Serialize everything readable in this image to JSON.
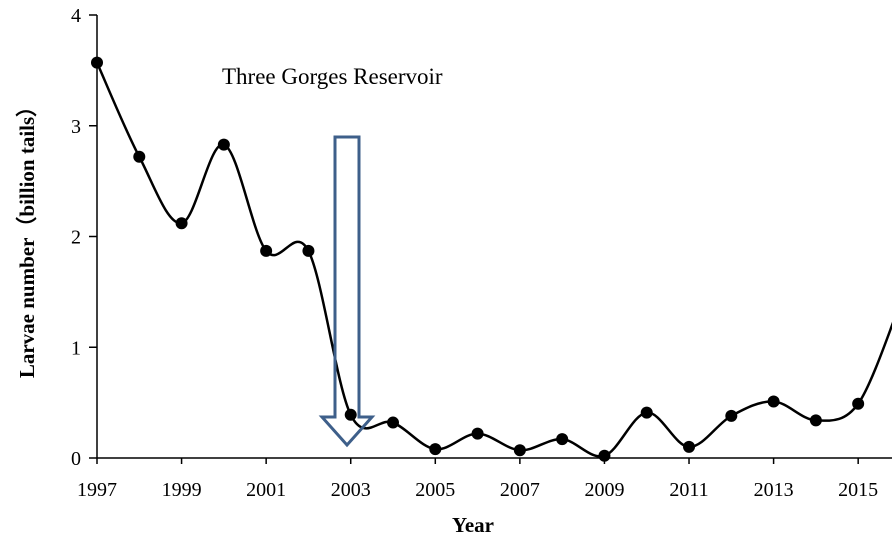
{
  "chart_data": {
    "type": "line",
    "annotation": "Three Gorges Reservoir",
    "x_label": "Year",
    "y_label": "Larvae number（billion tails）",
    "x": [
      1997,
      1998,
      1999,
      2000,
      2001,
      2002,
      2003,
      2004,
      2005,
      2006,
      2007,
      2008,
      2009,
      2010,
      2011,
      2012,
      2013,
      2014,
      2015,
      2016
    ],
    "series": [
      {
        "color": "#000000",
        "values": [
          3.57,
          2.72,
          2.12,
          2.83,
          1.87,
          1.87,
          0.39,
          0.32,
          0.08,
          0.22,
          0.07,
          0.17,
          0.02,
          0.41,
          0.1,
          0.38,
          0.51,
          0.34,
          0.49,
          1.4
        ]
      }
    ],
    "xlim": [
      1997,
      2015.8
    ],
    "xticks": [
      1997,
      1999,
      2001,
      2003,
      2005,
      2007,
      2009,
      2011,
      2013,
      2015
    ],
    "ylim": [
      0,
      4
    ],
    "yticks": [
      0,
      1,
      2,
      3,
      4
    ]
  }
}
